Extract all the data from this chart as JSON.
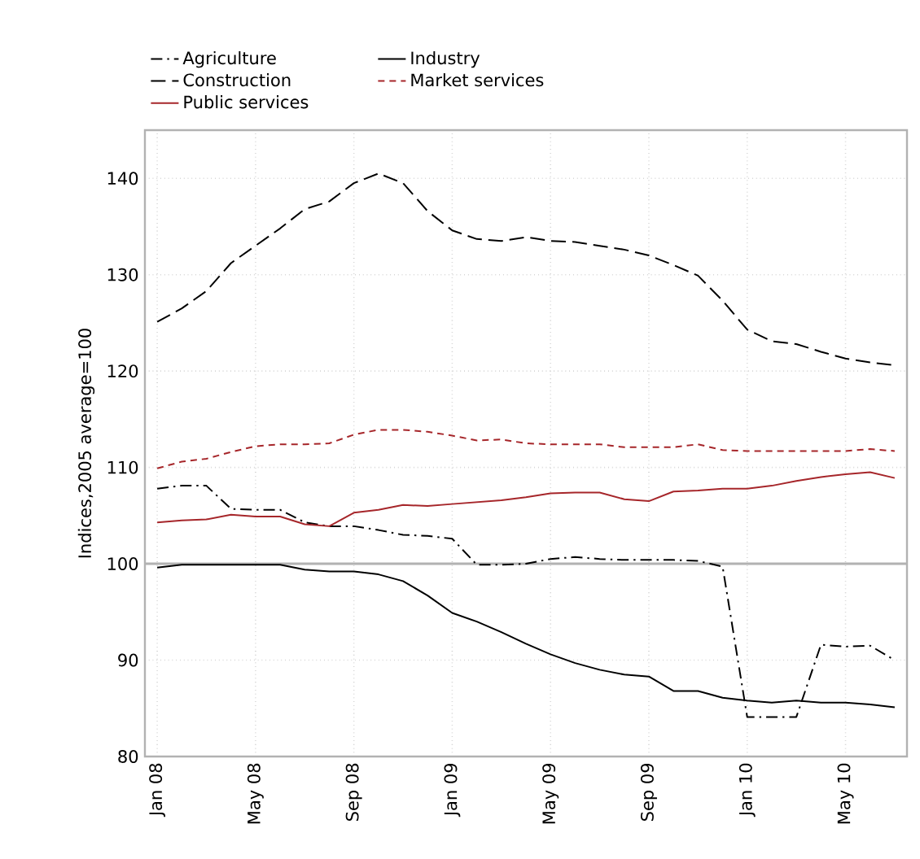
{
  "chart_data": {
    "type": "line",
    "ylabel": "Indices,2005 average=100",
    "categories": [
      "Jan 08",
      null,
      null,
      null,
      "May 08",
      null,
      null,
      null,
      "Sep 08",
      null,
      null,
      null,
      "Jan 09",
      null,
      null,
      null,
      "May 09",
      null,
      null,
      null,
      "Sep 09",
      null,
      null,
      null,
      "Jan 10",
      null,
      null,
      null,
      "May 10",
      null,
      null
    ],
    "series": [
      {
        "name": "Agriculture",
        "color": "#000000",
        "line_style": "dashdot",
        "values": [
          107.8,
          108.1,
          108.1,
          105.7,
          105.6,
          105.6,
          104.3,
          103.9,
          103.9,
          103.5,
          103.0,
          102.9,
          102.6,
          99.9,
          99.9,
          100.0,
          100.5,
          100.7,
          100.5,
          100.4,
          100.4,
          100.4,
          100.3,
          99.7,
          84.1,
          84.1,
          84.1,
          91.6,
          91.4,
          91.5,
          90.0
        ]
      },
      {
        "name": "Industry",
        "color": "#000000",
        "line_style": "solid",
        "values": [
          99.6,
          99.9,
          99.9,
          99.9,
          99.9,
          99.9,
          99.4,
          99.2,
          99.2,
          98.9,
          98.2,
          96.7,
          94.9,
          94.0,
          92.9,
          91.7,
          90.6,
          89.7,
          89.0,
          88.5,
          88.3,
          86.8,
          86.8,
          86.1,
          85.8,
          85.6,
          85.8,
          85.6,
          85.6,
          85.4,
          85.1
        ]
      },
      {
        "name": "Construction",
        "color": "#000000",
        "line_style": "longdashed",
        "values": [
          125.1,
          126.5,
          128.3,
          131.2,
          133.0,
          134.8,
          136.8,
          137.6,
          139.5,
          140.5,
          139.5,
          136.6,
          134.6,
          133.7,
          133.5,
          133.9,
          133.5,
          133.4,
          133.0,
          132.6,
          132.0,
          131.0,
          129.9,
          127.3,
          124.3,
          123.1,
          122.8,
          122.0,
          121.3,
          120.9,
          120.6
        ]
      },
      {
        "name": "Market services",
        "color": "#a6262a",
        "line_style": "dashed",
        "values": [
          109.9,
          110.6,
          110.9,
          111.6,
          112.2,
          112.4,
          112.4,
          112.5,
          113.4,
          113.9,
          113.9,
          113.7,
          113.3,
          112.8,
          112.9,
          112.5,
          112.4,
          112.4,
          112.4,
          112.1,
          112.1,
          112.1,
          112.4,
          111.8,
          111.7,
          111.7,
          111.7,
          111.7,
          111.7,
          111.9,
          111.7
        ]
      },
      {
        "name": "Public services",
        "color": "#a6262a",
        "line_style": "solid",
        "values": [
          104.3,
          104.5,
          104.6,
          105.1,
          104.9,
          104.9,
          104.1,
          103.9,
          105.3,
          105.6,
          106.1,
          106.0,
          106.2,
          106.4,
          106.6,
          106.9,
          107.3,
          107.4,
          107.4,
          106.7,
          106.5,
          107.5,
          107.6,
          107.8,
          107.8,
          108.1,
          108.6,
          109.0,
          109.3,
          109.5,
          108.9
        ]
      }
    ],
    "ylim": [
      80,
      145
    ],
    "yticks": [
      80,
      90,
      100,
      110,
      120,
      130,
      140
    ],
    "grid": true,
    "legend": "top",
    "ref_lines": [
      {
        "axis": "y",
        "value": 100
      }
    ]
  }
}
